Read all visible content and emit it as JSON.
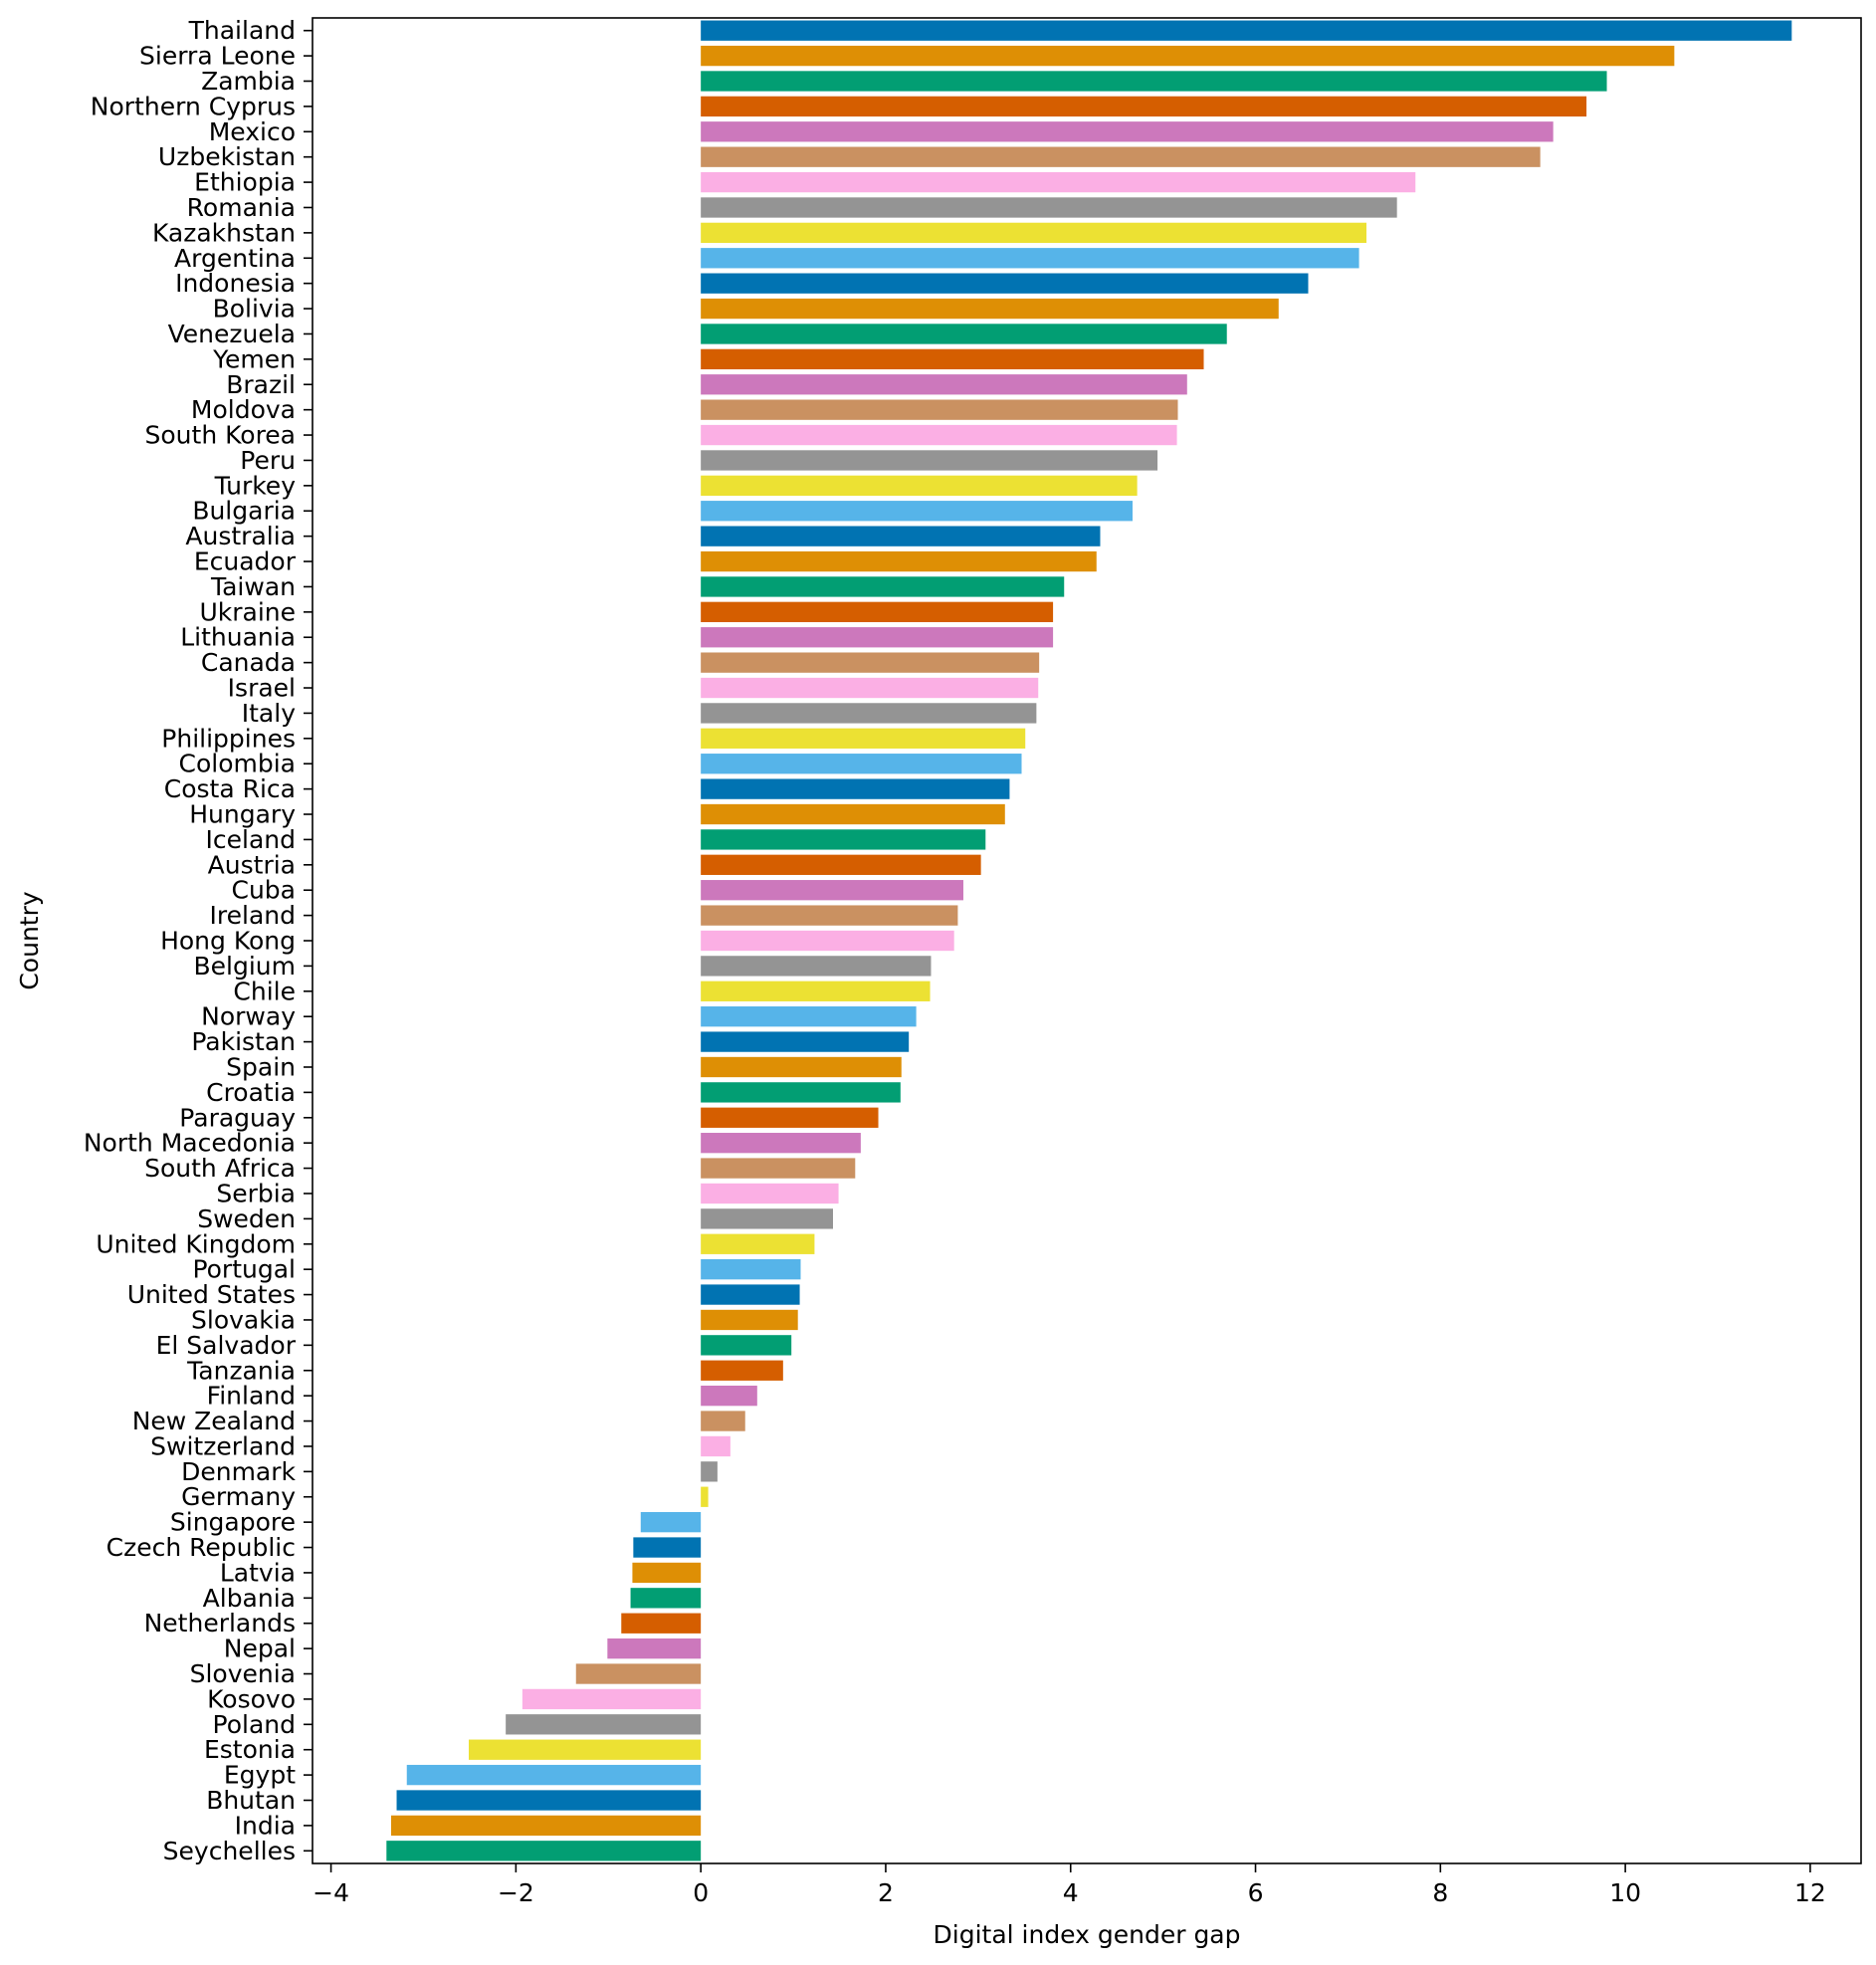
{
  "chart_data": {
    "type": "bar",
    "orientation": "horizontal",
    "title": "",
    "xlabel": "Digital index gender gap",
    "ylabel": "Country",
    "xlim": [
      -4.2,
      12.55
    ],
    "xticks": [
      -4,
      -2,
      0,
      2,
      4,
      6,
      8,
      10,
      12
    ],
    "xtick_labels": [
      "−4",
      "−2",
      "0",
      "2",
      "4",
      "6",
      "8",
      "10",
      "12"
    ],
    "grid": false,
    "legend": "none",
    "palette": [
      "#0173b2",
      "#de8f05",
      "#029e73",
      "#d55e00",
      "#cc78bc",
      "#ca9161",
      "#fbafe4",
      "#949494",
      "#ece133",
      "#56b4e9"
    ],
    "categories": [
      "Thailand",
      "Sierra Leone",
      "Zambia",
      "Northern Cyprus",
      "Mexico",
      "Uzbekistan",
      "Ethiopia",
      "Romania",
      "Kazakhstan",
      "Argentina",
      "Indonesia",
      "Bolivia",
      "Venezuela",
      "Yemen",
      "Brazil",
      "Moldova",
      "South Korea",
      "Peru",
      "Turkey",
      "Bulgaria",
      "Australia",
      "Ecuador",
      "Taiwan",
      "Ukraine",
      "Lithuania",
      "Canada",
      "Israel",
      "Italy",
      "Philippines",
      "Colombia",
      "Costa Rica",
      "Hungary",
      "Iceland",
      "Austria",
      "Cuba",
      "Ireland",
      "Hong Kong",
      "Belgium",
      "Chile",
      "Norway",
      "Pakistan",
      "Spain",
      "Croatia",
      "Paraguay",
      "North Macedonia",
      "South Africa",
      "Serbia",
      "Sweden",
      "United Kingdom",
      "Portugal",
      "United States",
      "Slovakia",
      "El Salvador",
      "Tanzania",
      "Finland",
      "New Zealand",
      "Switzerland",
      "Denmark",
      "Germany",
      "Singapore",
      "Czech Republic",
      "Latvia",
      "Albania",
      "Netherlands",
      "Nepal",
      "Slovenia",
      "Kosovo",
      "Poland",
      "Estonia",
      "Egypt",
      "Bhutan",
      "India",
      "Seychelles"
    ],
    "values": [
      11.8,
      10.53,
      9.8,
      9.58,
      9.22,
      9.08,
      7.73,
      7.53,
      7.2,
      7.12,
      6.57,
      6.25,
      5.69,
      5.44,
      5.26,
      5.16,
      5.15,
      4.94,
      4.72,
      4.67,
      4.32,
      4.28,
      3.93,
      3.81,
      3.81,
      3.66,
      3.65,
      3.63,
      3.51,
      3.47,
      3.34,
      3.29,
      3.08,
      3.03,
      2.84,
      2.78,
      2.74,
      2.49,
      2.48,
      2.33,
      2.25,
      2.17,
      2.16,
      1.92,
      1.73,
      1.67,
      1.49,
      1.43,
      1.23,
      1.08,
      1.07,
      1.05,
      0.98,
      0.89,
      0.61,
      0.48,
      0.32,
      0.18,
      0.08,
      -0.65,
      -0.73,
      -0.74,
      -0.76,
      -0.86,
      -1.01,
      -1.35,
      -1.93,
      -2.11,
      -2.51,
      -3.18,
      -3.29,
      -3.35,
      -3.4
    ]
  }
}
